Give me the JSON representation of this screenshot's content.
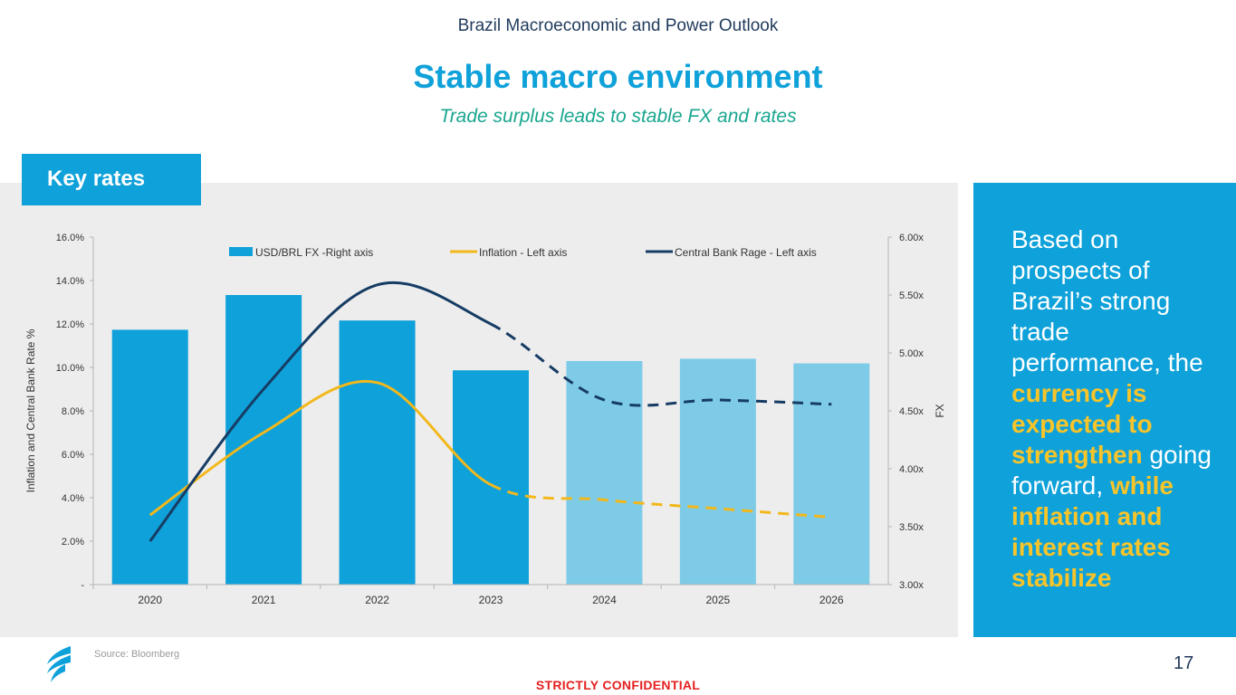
{
  "header": {
    "title": "Brazil Macroeconomic and Power Outlook",
    "main_title": "Stable macro environment",
    "subtitle": "Trade surplus leads to stable FX and rates"
  },
  "section": {
    "label": "Key rates"
  },
  "side_panel": {
    "text_1": "Based on prospects of Brazil’s strong trade performance, the ",
    "highlight_1": "currency is expected to strengthen",
    "text_2": " going forward, ",
    "highlight_2": "while inflation and interest rates stabilize"
  },
  "footer": {
    "source": "Source: Bloomberg",
    "page_number": "17",
    "confidential": "STRICTLY CONFIDENTIAL"
  },
  "colors": {
    "bar_actual": "#0fa1d9",
    "bar_forecast": "#7ecbe8",
    "inflation": "#f2b81b",
    "central_bank": "#163c64",
    "accent": "#0fa1d9"
  },
  "chart_data": {
    "type": "bar+line",
    "categories": [
      "2020",
      "2021",
      "2022",
      "2023",
      "2024",
      "2025",
      "2026"
    ],
    "forecast_start_index": 4,
    "series": [
      {
        "name": "USD/BRL FX -Right axis",
        "kind": "bar",
        "axis": "right",
        "values": [
          5.2,
          5.5,
          5.28,
          4.85,
          4.93,
          4.95,
          4.91
        ]
      },
      {
        "name": "Inflation - Left axis",
        "kind": "line",
        "axis": "left",
        "values": [
          3.2,
          7.0,
          9.3,
          4.6,
          3.9,
          3.5,
          3.1
        ],
        "dashed_from_index": 3
      },
      {
        "name": "Central Bank Rage  - Left axis",
        "kind": "line",
        "axis": "left",
        "values": [
          2.0,
          9.0,
          13.8,
          12.0,
          8.5,
          8.5,
          8.3
        ],
        "dashed_from_index": 3
      }
    ],
    "left_axis": {
      "label": "Inflation and Central Bank Rate %",
      "min": 0,
      "max": 16,
      "ticks": [
        "-",
        "2.0%",
        "4.0%",
        "6.0%",
        "8.0%",
        "10.0%",
        "12.0%",
        "14.0%",
        "16.0%"
      ]
    },
    "right_axis": {
      "label": "FX",
      "min": 3.0,
      "max": 6.0,
      "ticks": [
        "3.00x",
        "3.50x",
        "4.00x",
        "4.50x",
        "5.00x",
        "5.50x",
        "6.00x"
      ]
    },
    "legend_position": "top"
  }
}
